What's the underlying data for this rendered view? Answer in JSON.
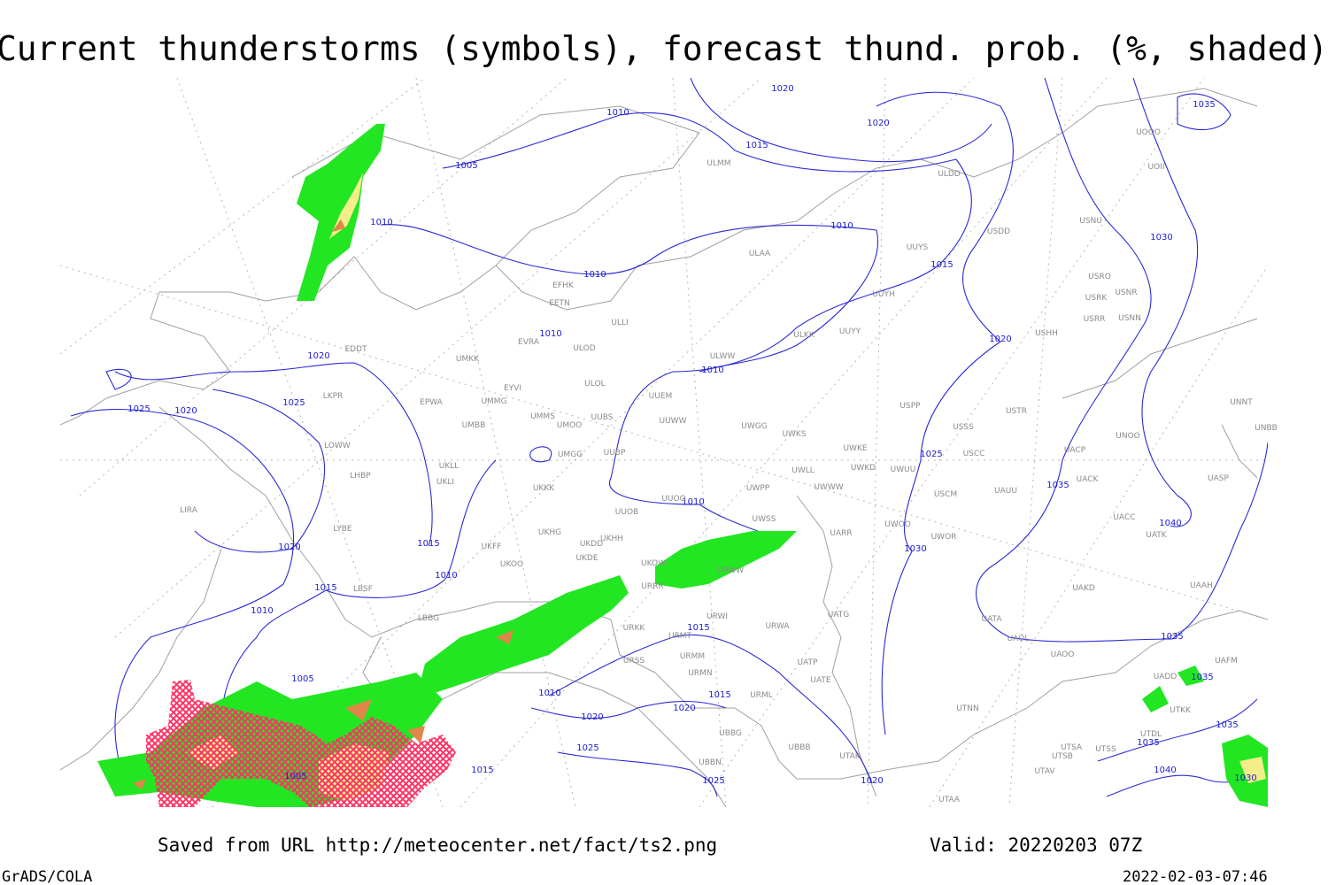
{
  "title": "Current thunderstorms (symbols), forecast thund. prob. (%, shaded)",
  "footer": {
    "source": "Saved from URL http://meteocenter.net/fact/ts2.png",
    "valid": "Valid: 20220203 07Z",
    "software": "GrADS/COLA",
    "timestamp": "2022-02-03-07:46"
  },
  "isobar_labels": [
    "1020",
    "1010",
    "1020",
    "1015",
    "1005",
    "1035",
    "1010",
    "1010",
    "1030",
    "1015",
    "1010",
    "1010",
    "1020",
    "1020",
    "1010",
    "1025",
    "1020",
    "1025",
    "1025",
    "1035",
    "1010",
    "1040",
    "1020",
    "1015",
    "1030",
    "1010",
    "1015",
    "1010",
    "1015",
    "1035",
    "1005",
    "1035",
    "1010",
    "1015",
    "1020",
    "1020",
    "1035",
    "1025",
    "1035",
    "1005",
    "1015",
    "1025",
    "1040",
    "1030",
    "1020"
  ],
  "stations": [
    "ULMM",
    "ULDD",
    "USDD",
    "USNU",
    "UOOO",
    "UOII",
    "ULAA",
    "UUYS",
    "EFHK",
    "EETN",
    "ULLI",
    "UUYH",
    "USRO",
    "USRK",
    "USNR",
    "USRR",
    "USNN",
    "USHH",
    "EVRA",
    "ULOD",
    "UUYY",
    "ULKK",
    "EDDT",
    "UMKK",
    "ULWW",
    "ULOL",
    "EYVI",
    "UUEM",
    "LKPR",
    "EPWA",
    "UMMG",
    "USPP",
    "USTR",
    "UNNT",
    "UMMS",
    "UMOO",
    "UUBS",
    "UUWW",
    "UWGG",
    "UWKS",
    "UNBB",
    "UMBB",
    "USSS",
    "LOWW",
    "UUBP",
    "UMGG",
    "UWKE",
    "UNOO",
    "USCC",
    "UACP",
    "UKLL",
    "UWKD",
    "UWUU",
    "UWLL",
    "UACK",
    "LHBP",
    "UKLI",
    "UKKK",
    "UWPP",
    "UWWW",
    "USCM",
    "UAUU",
    "UASP",
    "UUOO",
    "UUOB",
    "UWSS",
    "LIRA",
    "LYBE",
    "UKHG",
    "UKHH",
    "UKDD",
    "UARR",
    "UWOO",
    "UWOR",
    "UACC",
    "UATK",
    "UKFF",
    "UKOO",
    "UKDE",
    "UKOW",
    "URWW",
    "UAKD",
    "UAAH",
    "LBSF",
    "URRR",
    "UATG",
    "URWI",
    "UATA",
    "UAOL",
    "UAOO",
    "LBBG",
    "URKK",
    "URMT",
    "URWA",
    "URSS",
    "URMM",
    "UATP",
    "UATE",
    "URMN",
    "UADD",
    "UAFM",
    "URML",
    "UTNN",
    "UTKK",
    "UBBG",
    "UTDL",
    "UBBB",
    "UTSA",
    "UTSS",
    "UTSB",
    "UBBN",
    "UTAK",
    "UTAV",
    "UTAA"
  ]
}
